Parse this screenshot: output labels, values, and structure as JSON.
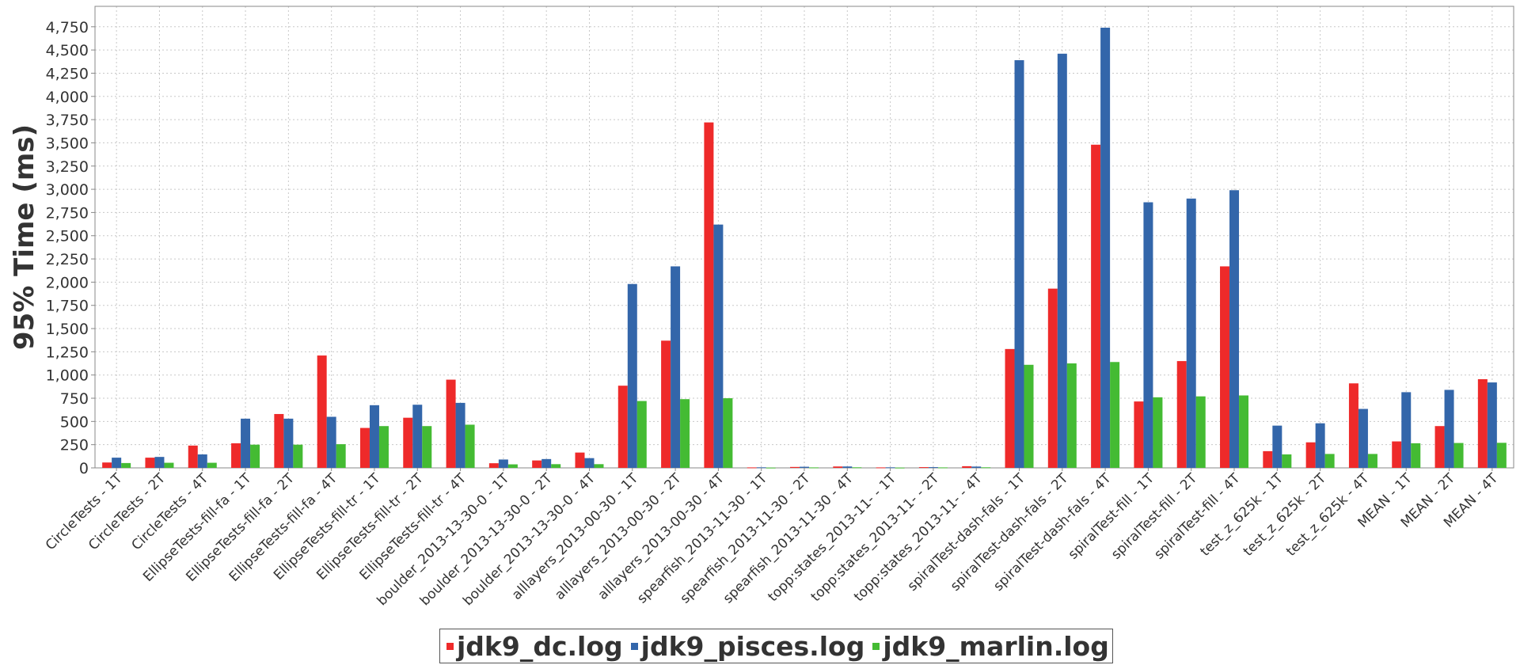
{
  "chart_data": {
    "type": "bar",
    "ylabel": "95% Time (ms)",
    "xlabel": "",
    "ylim": [
      0,
      4970
    ],
    "yticks": [
      0,
      250,
      500,
      750,
      1000,
      1250,
      1500,
      1750,
      2000,
      2250,
      2500,
      2750,
      3000,
      3250,
      3500,
      3750,
      4000,
      4250,
      4500,
      4750
    ],
    "ytick_labels": [
      "0",
      "250",
      "500",
      "750",
      "1,000",
      "1,250",
      "1,500",
      "1,750",
      "2,000",
      "2,250",
      "2,500",
      "2,750",
      "3,000",
      "3,250",
      "3,500",
      "3,750",
      "4,000",
      "4,250",
      "4,500",
      "4,750"
    ],
    "grid": true,
    "legend_position": "bottom-center",
    "categories": [
      "CircleTests - 1T",
      "CircleTests - 2T",
      "CircleTests - 4T",
      "EllipseTests-fill-fa - 1T",
      "EllipseTests-fill-fa - 2T",
      "EllipseTests-fill-fa - 4T",
      "EllipseTests-fill-tr - 1T",
      "EllipseTests-fill-tr - 2T",
      "EllipseTests-fill-tr - 4T",
      "boulder_2013-13-30-0 - 1T",
      "boulder_2013-13-30-0 - 2T",
      "boulder_2013-13-30-0 - 4T",
      "alllayers_2013-00-30 - 1T",
      "alllayers_2013-00-30 - 2T",
      "alllayers_2013-00-30 - 4T",
      "spearfish_2013-11-30 - 1T",
      "spearfish_2013-11-30 - 2T",
      "spearfish_2013-11-30 - 4T",
      "topp:states_2013-11- - 1T",
      "topp:states_2013-11- - 2T",
      "topp:states_2013-11- - 4T",
      "spiralTest-dash-fals - 1T",
      "spiralTest-dash-fals - 2T",
      "spiralTest-dash-fals - 4T",
      "spiralTest-fill - 1T",
      "spiralTest-fill - 2T",
      "spiralTest-fill - 4T",
      "test_z_625k - 1T",
      "test_z_625k - 2T",
      "test_z_625k - 4T",
      "MEAN - 1T",
      "MEAN - 2T",
      "MEAN - 4T"
    ],
    "series": [
      {
        "name": "jdk9_dc.log",
        "color": "#ee2a2a",
        "values": [
          58,
          110,
          240,
          265,
          580,
          1210,
          430,
          540,
          950,
          50,
          80,
          165,
          885,
          1370,
          3720,
          5,
          10,
          15,
          5,
          8,
          18,
          1280,
          1930,
          3480,
          715,
          1150,
          2170,
          180,
          275,
          910,
          285,
          450,
          955
        ]
      },
      {
        "name": "jdk9_pisces.log",
        "color": "#3366aa",
        "values": [
          110,
          118,
          145,
          530,
          530,
          550,
          675,
          680,
          700,
          90,
          95,
          105,
          1980,
          2170,
          2620,
          6,
          12,
          15,
          6,
          8,
          14,
          4390,
          4460,
          4740,
          2860,
          2900,
          2990,
          455,
          480,
          635,
          815,
          840,
          920
        ]
      },
      {
        "name": "jdk9_marlin.log",
        "color": "#44bb33",
        "values": [
          52,
          55,
          55,
          250,
          250,
          255,
          450,
          450,
          465,
          38,
          40,
          40,
          720,
          740,
          750,
          3,
          5,
          6,
          3,
          5,
          6,
          1110,
          1125,
          1140,
          760,
          770,
          780,
          145,
          150,
          150,
          265,
          268,
          270
        ]
      }
    ]
  }
}
